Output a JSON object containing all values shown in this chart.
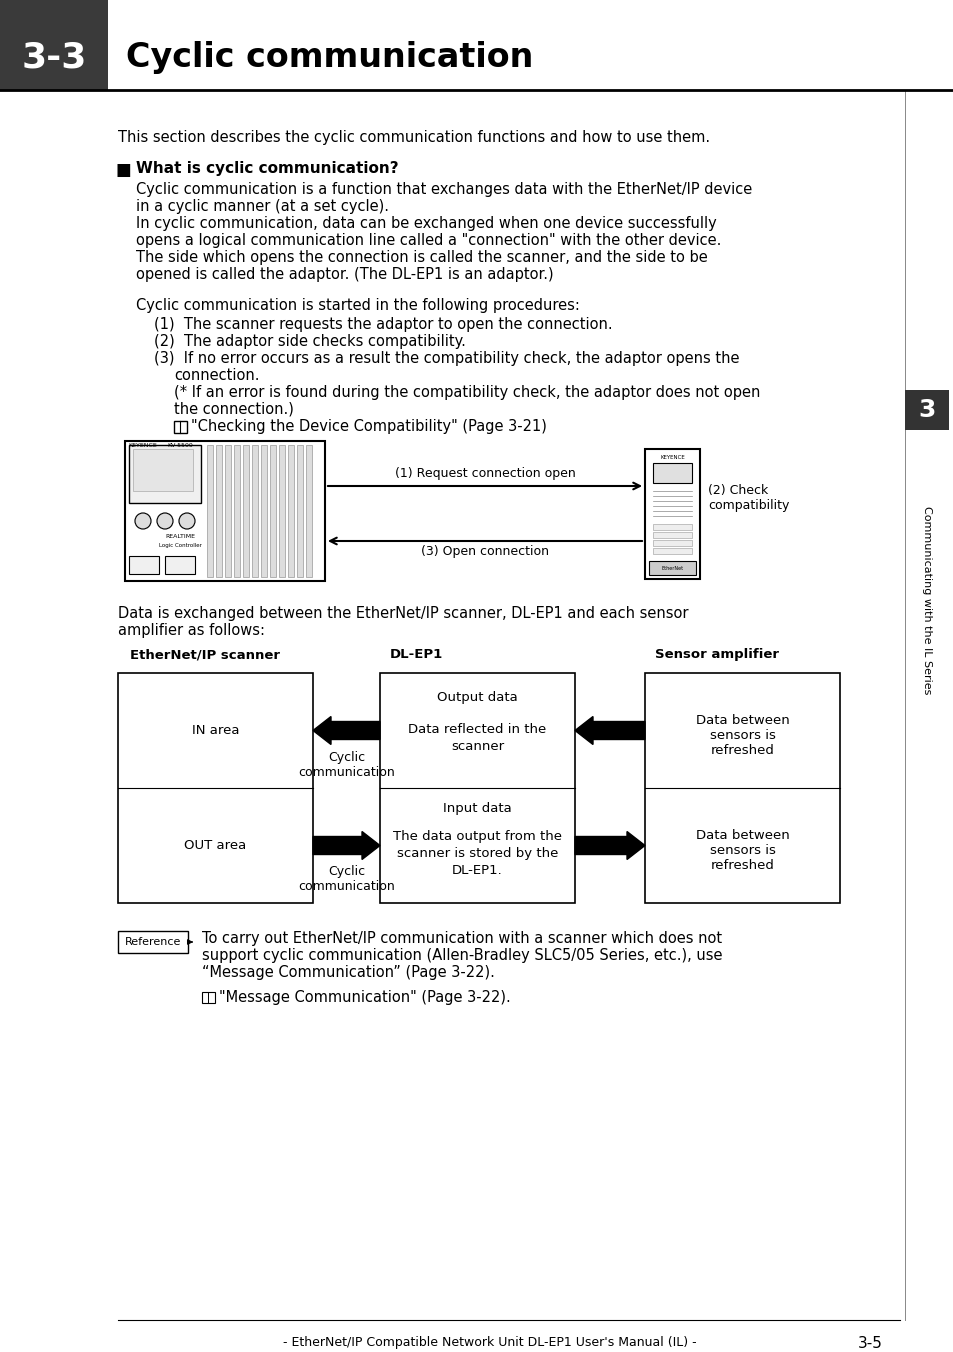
{
  "title_number": "3-3",
  "title_text": "Cyclic communication",
  "header_bg": "#3a3a3a",
  "header_text_color": "#ffffff",
  "body_bg": "#ffffff",
  "body_text_color": "#000000",
  "intro_text": "This section describes the cyclic communication functions and how to use them.",
  "section_title": "What is cyclic communication?",
  "para1_line1": "Cyclic communication is a function that exchanges data with the EtherNet/IP device",
  "para1_line2": "in a cyclic manner (at a set cycle).",
  "para2_line1": "In cyclic communication, data can be exchanged when one device successfully",
  "para2_line2": "opens a logical communication line called a \"connection\" with the other device.",
  "para3_line1": "The side which opens the connection is called the scanner, and the side to be",
  "para3_line2": "opened is called the adaptor. (The DL-EP1 is an adaptor.)",
  "para4": "Cyclic communication is started in the following procedures:",
  "step1": "(1)  The scanner requests the adaptor to open the connection.",
  "step2": "(2)  The adaptor side checks compatibility.",
  "step3a": "(3)  If no error occurs as a result the compatibility check, the adaptor opens the",
  "step3b": "       connection.",
  "step4a": "     (* If an error is found during the compatibility check, the adaptor does not open",
  "step4b": "     the connection.)",
  "step5": "     “Checking the Device Compatibility” (Page 3-21)",
  "diagram_label1": "(1) Request connection open",
  "diagram_label2": "(2) Check\ncompatibility",
  "diagram_label3": "(3) Open connection",
  "data_exchange_line1": "Data is exchanged between the EtherNet/IP scanner, DL-EP1 and each sensor",
  "data_exchange_line2": "amplifier as follows:",
  "col_label1": "EtherNet/IP scanner",
  "col_label2": "DL-EP1",
  "col_label3": "Sensor amplifier",
  "row1_left": "IN area",
  "row1_mid_top": "Output data",
  "row1_mid_bot1": "Data reflected in the",
  "row1_mid_bot2": "scanner",
  "row1_right1": "Data between",
  "row1_right2": "sensors is",
  "row1_right3": "refreshed",
  "row1_arrow_label": "Cyclic\ncommunication",
  "row2_left": "OUT area",
  "row2_mid_top": "Input data",
  "row2_mid_bot1": "The data output from the",
  "row2_mid_bot2": "scanner is stored by the",
  "row2_mid_bot3": "DL-EP1.",
  "row2_right1": "Data between",
  "row2_right2": "sensors is",
  "row2_right3": "refreshed",
  "row2_arrow_label": "Cyclic\ncommunication",
  "ref_label": "Reference",
  "ref_text1": "To carry out EtherNet/IP communication with a scanner which does not",
  "ref_text2": "support cyclic communication (Allen-Bradley SLC5/05 Series, etc.), use",
  "ref_text3": "“Message Communication” (Page 3-22).",
  "ref_text4": "“Message Communication” (Page 3-22).",
  "footer_text": "- EtherNet/IP Compatible Network Unit DL-EP1 User's Manual (IL) -",
  "footer_page": "3-5",
  "sidebar_text": "Communicating with the IL Series",
  "sidebar_number": "3"
}
